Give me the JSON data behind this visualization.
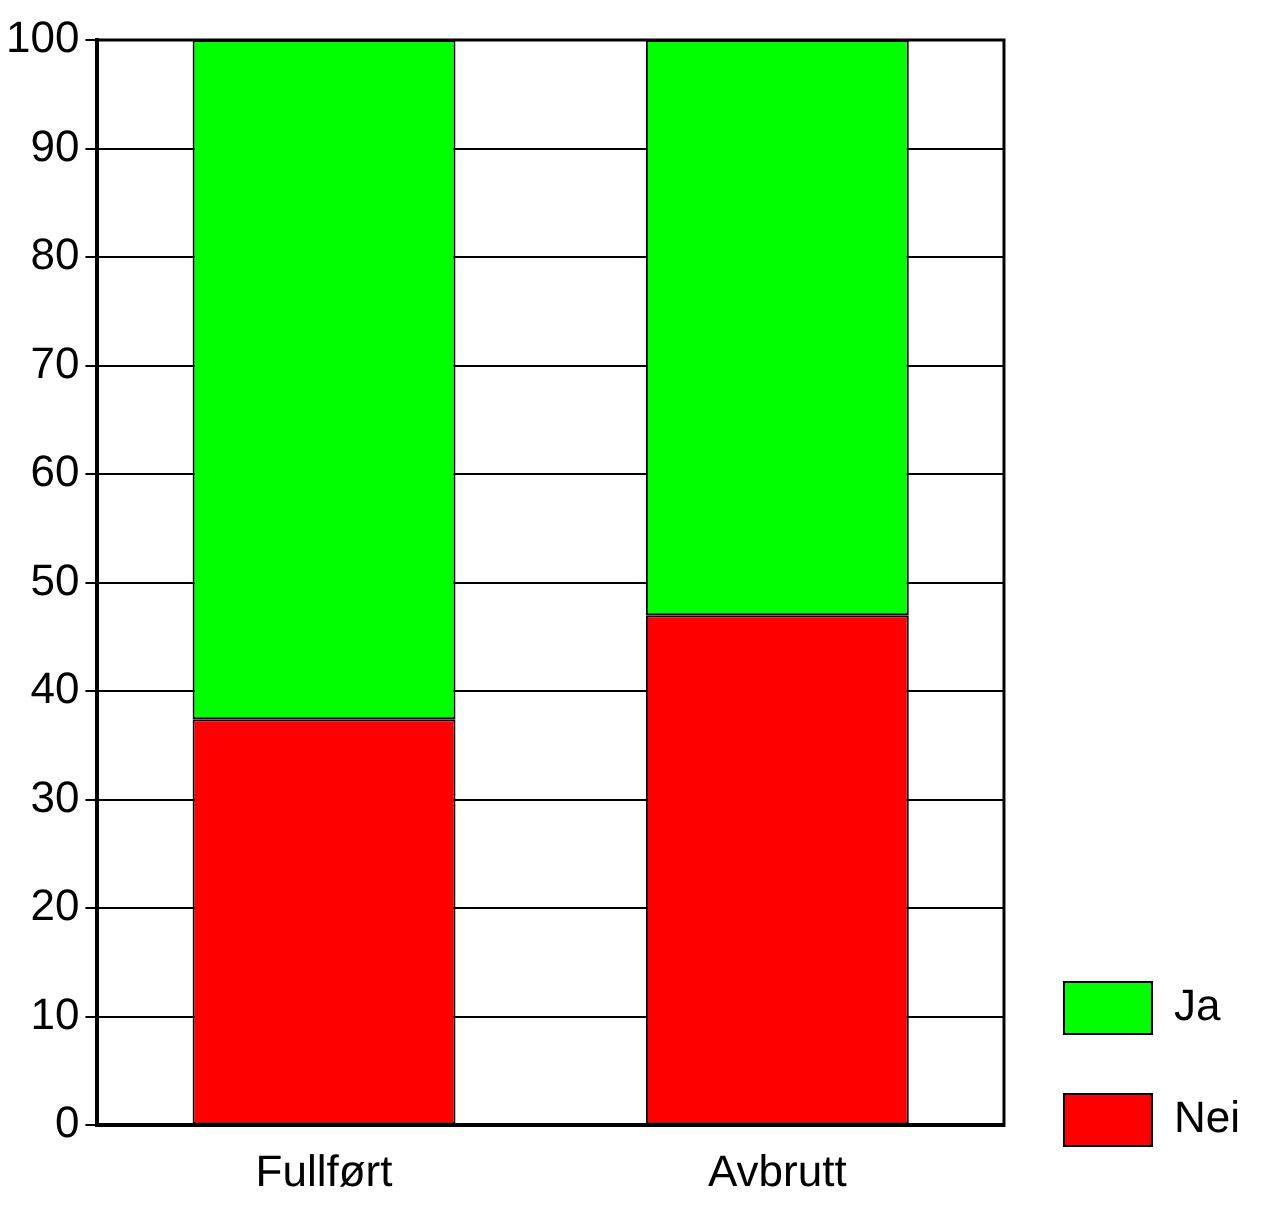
{
  "chart_data": {
    "type": "bar",
    "stacked": true,
    "categories": [
      "Fullført",
      "Avbrutt"
    ],
    "series": [
      {
        "name": "Nei",
        "color": "#ff0000",
        "values": [
          37.4,
          47
        ]
      },
      {
        "name": "Ja",
        "color": "#00ff00",
        "values": [
          62.6,
          53
        ]
      }
    ],
    "ylim": [
      0,
      100
    ],
    "yticks": [
      0,
      10,
      20,
      30,
      40,
      50,
      60,
      70,
      80,
      90,
      100
    ],
    "grid": "y",
    "legend": "bottom right"
  }
}
